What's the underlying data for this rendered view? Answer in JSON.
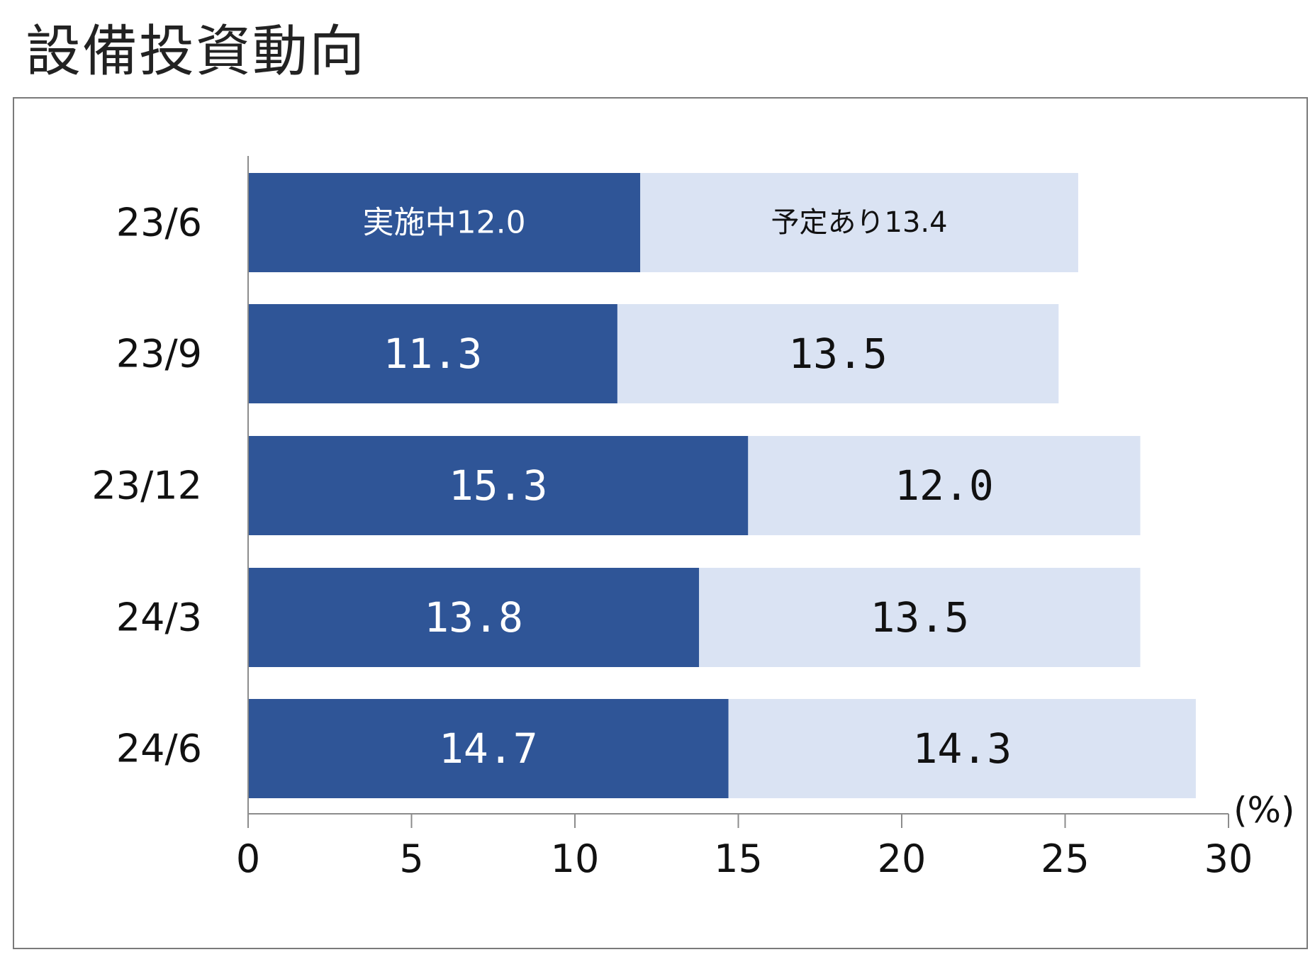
{
  "title": "設備投資動向",
  "chart_data": {
    "type": "bar",
    "orientation": "horizontal",
    "stacked": true,
    "categories": [
      "23/6",
      "23/9",
      "23/12",
      "24/3",
      "24/6"
    ],
    "series": [
      {
        "name": "実施中",
        "color": "#2f5597",
        "values": [
          12.0,
          11.3,
          15.3,
          13.8,
          14.7
        ],
        "labels": [
          "実施中12.0",
          "11.3",
          "15.3",
          "13.8",
          "14.7"
        ]
      },
      {
        "name": "予定あり",
        "color": "#dae3f3",
        "values": [
          13.4,
          13.5,
          12.0,
          13.5,
          14.3
        ],
        "labels": [
          "予定あり13.4",
          "13.5",
          "12.0",
          "13.5",
          "14.3"
        ]
      }
    ],
    "xlim": [
      0,
      30
    ],
    "xticks": [
      0,
      5,
      10,
      15,
      20,
      25,
      30
    ],
    "xunit": "(%)",
    "grid": false
  }
}
